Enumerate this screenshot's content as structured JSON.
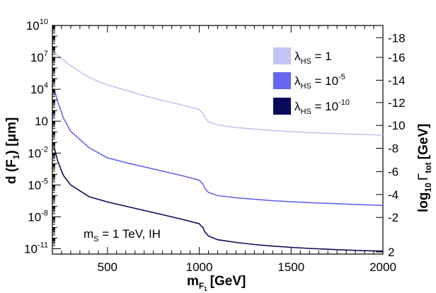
{
  "chart_data": {
    "type": "line",
    "title": "",
    "xlabel": "m",
    "xlabel_sub": "F",
    "xlabel_subsub": "1",
    "xlabel_unit": "[GeV]",
    "ylabel": "d (F",
    "ylabel_sub": "1",
    "ylabel_unit": ") [μm]",
    "y2label_prefix": "log",
    "y2label_sub": "10",
    "y2label_sym": "Γ",
    "y2label_symsub": "tot",
    "y2label_unit": "[GeV]",
    "xlim": [
      200,
      2000
    ],
    "ylim_log10": [
      -11.5,
      10
    ],
    "x_ticks": [
      500,
      1000,
      1500,
      2000
    ],
    "x_tick_labels": [
      "500",
      "1000",
      "1500",
      "2000"
    ],
    "y_ticks_log10": [
      10,
      7,
      4,
      1,
      -2,
      -5,
      -8,
      -11
    ],
    "y_tick_base": [
      "10",
      "10",
      "10",
      "10",
      "10",
      "10",
      "10",
      "10"
    ],
    "y_tick_exp": [
      "10",
      "7",
      "4",
      "",
      "-2",
      "-5",
      "-8",
      "-11"
    ],
    "y2_ticks": [
      -18,
      -16,
      -14,
      -12,
      -10,
      -8,
      -6,
      -4,
      -2,
      2
    ],
    "y2_tick_labels": [
      "-18",
      "-16",
      "-14",
      "-12",
      "-10",
      "-8",
      "-6",
      "-4",
      "-2",
      "2"
    ],
    "y2_tick_positions_log10": [
      8.85,
      7.0,
      4.85,
      2.75,
      0.6,
      -1.55,
      -3.75,
      -5.9,
      -8.05,
      -11.3
    ],
    "annotation_prefix": "m",
    "annotation_sub": "S",
    "annotation_rest": " = 1 TeV,  IH",
    "series": [
      {
        "name": "λ_HS = 1",
        "legend_sym": "λ",
        "legend_sub": "HS",
        "legend_eq": " = 1",
        "legend_exp": "",
        "color": "#c4c4f2",
        "x": [
          210,
          250,
          300,
          400,
          500,
          600,
          700,
          800,
          900,
          1000,
          1010,
          1020,
          1030,
          1050,
          1100,
          1200,
          1300,
          1400,
          1500,
          1600,
          1700,
          1800,
          1900,
          2000
        ],
        "log10_y": [
          7.5,
          6.9,
          6.2,
          5.1,
          4.4,
          3.9,
          3.4,
          2.95,
          2.55,
          2.1,
          1.9,
          1.75,
          1.35,
          0.95,
          0.65,
          0.4,
          0.25,
          0.12,
          0.02,
          -0.07,
          -0.14,
          -0.2,
          -0.26,
          -0.32
        ]
      },
      {
        "name": "λ_HS = 10^-5",
        "legend_sym": "λ",
        "legend_sub": "HS",
        "legend_eq": " = 10",
        "legend_exp": "-5",
        "color": "#6666f0",
        "x": [
          210,
          230,
          260,
          300,
          400,
          500,
          600,
          700,
          800,
          900,
          1000,
          1010,
          1020,
          1030,
          1050,
          1100,
          1200,
          1300,
          1400,
          1500,
          1600,
          1700,
          1800,
          1900,
          2000
        ],
        "log10_y": [
          4.0,
          2.8,
          1.3,
          0.05,
          -1.5,
          -2.45,
          -2.9,
          -3.3,
          -3.7,
          -4.1,
          -4.55,
          -4.75,
          -4.9,
          -5.3,
          -5.7,
          -6.0,
          -6.2,
          -6.35,
          -6.48,
          -6.58,
          -6.66,
          -6.73,
          -6.8,
          -6.86,
          -6.92
        ]
      },
      {
        "name": "λ_HS = 10^-10",
        "legend_sym": "λ",
        "legend_sub": "HS",
        "legend_eq": " = 10",
        "legend_exp": "-10",
        "color": "#0a0a5c",
        "x": [
          210,
          230,
          260,
          300,
          400,
          500,
          600,
          700,
          800,
          900,
          1000,
          1010,
          1020,
          1030,
          1050,
          1100,
          1200,
          1300,
          1400,
          1500,
          1600,
          1700,
          1800,
          1900,
          2000
        ],
        "log10_y": [
          -1.5,
          -2.8,
          -4.1,
          -5.0,
          -6.1,
          -6.6,
          -7.0,
          -7.4,
          -7.8,
          -8.2,
          -8.65,
          -8.85,
          -9.0,
          -9.4,
          -9.8,
          -10.15,
          -10.4,
          -10.6,
          -10.75,
          -10.87,
          -10.97,
          -11.05,
          -11.12,
          -11.18,
          -11.22
        ]
      }
    ]
  }
}
